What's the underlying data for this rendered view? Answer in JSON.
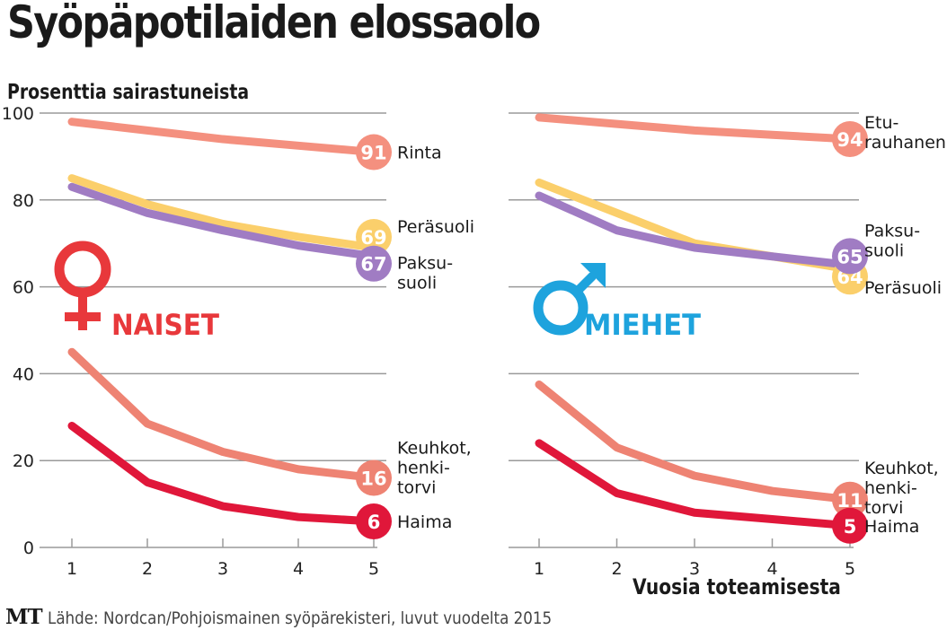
{
  "title": "Syöpäpotilaiden elossaolo",
  "y_axis_label": "Prosenttia sairastuneista",
  "x_axis_label": "Vuosia toteamisesta",
  "footer": {
    "logo": "MT",
    "source": "Lähde: Nordcan/Pohjoismainen syöpärekisteri, luvut vuodelta 2015"
  },
  "colors": {
    "breast_prostate": "#f4907f",
    "rectum": "#fbcf6b",
    "colon": "#a07cc3",
    "lung": "#ee8373",
    "pancreas": "#e0173a",
    "female": "#e8383b",
    "male": "#1ea3dd"
  },
  "chart_data": [
    {
      "type": "line",
      "panel": "NAISET",
      "gender_label": "NAISET",
      "gender_icon": "female-symbol-icon",
      "xlabel": "",
      "ylabel": "Prosenttia sairastuneista",
      "x": [
        1,
        2,
        3,
        4,
        5
      ],
      "x_ticks": [
        "1",
        "2",
        "3",
        "4",
        "5"
      ],
      "ylim": [
        0,
        100
      ],
      "y_ticks": [
        "0",
        "20",
        "40",
        "60",
        "80",
        "100"
      ],
      "grid": true,
      "series": [
        {
          "name": "Rinta",
          "label_lines": [
            "Rinta"
          ],
          "color_key": "breast_prostate",
          "values": [
            98,
            96,
            94,
            92.5,
            91
          ],
          "end_label": "91"
        },
        {
          "name": "Peräsuoli",
          "label_lines": [
            "Peräsuoli"
          ],
          "color_key": "rectum",
          "values": [
            85,
            79,
            74.5,
            71.5,
            69
          ],
          "end_label": "69"
        },
        {
          "name": "Paksusuoli",
          "label_lines": [
            "Paksu-",
            "suoli"
          ],
          "color_key": "colon",
          "values": [
            83,
            77,
            73,
            69.5,
            67
          ],
          "end_label": "67"
        },
        {
          "name": "Keuhkot, henkitorvi",
          "label_lines": [
            "Keuhkot,",
            "henki-",
            "torvi"
          ],
          "color_key": "lung",
          "values": [
            45,
            28.5,
            22,
            18,
            16
          ],
          "end_label": "16"
        },
        {
          "name": "Haima",
          "label_lines": [
            "Haima"
          ],
          "color_key": "pancreas",
          "values": [
            28,
            15,
            9.5,
            7,
            6
          ],
          "end_label": "6"
        }
      ]
    },
    {
      "type": "line",
      "panel": "MIEHET",
      "gender_label": "MIEHET",
      "gender_icon": "male-symbol-icon",
      "xlabel": "Vuosia toteamisesta",
      "ylabel": "",
      "x": [
        1,
        2,
        3,
        4,
        5
      ],
      "x_ticks": [
        "1",
        "2",
        "3",
        "4",
        "5"
      ],
      "ylim": [
        0,
        100
      ],
      "grid": true,
      "series": [
        {
          "name": "Eturauhanen",
          "label_lines": [
            "Etu-",
            "rauhanen"
          ],
          "color_key": "breast_prostate",
          "values": [
            99,
            97.5,
            96,
            95,
            94
          ],
          "end_label": "94"
        },
        {
          "name": "Peräsuoli",
          "label_lines": [
            "Peräsuoli"
          ],
          "color_key": "rectum",
          "values": [
            84,
            77,
            70,
            67,
            64
          ],
          "end_label": "64"
        },
        {
          "name": "Paksusuoli",
          "label_lines": [
            "Paksu-",
            "suoli"
          ],
          "color_key": "colon",
          "values": [
            81,
            73,
            69,
            67,
            65
          ],
          "end_label": "65"
        },
        {
          "name": "Keuhkot, henkitorvi",
          "label_lines": [
            "Keuhkot,",
            "henki-",
            "torvi"
          ],
          "color_key": "lung",
          "values": [
            37.5,
            23,
            16.5,
            13,
            11
          ],
          "end_label": "11"
        },
        {
          "name": "Haima",
          "label_lines": [
            "Haima"
          ],
          "color_key": "pancreas",
          "values": [
            24,
            12.5,
            8,
            6.5,
            5
          ],
          "end_label": "5"
        }
      ]
    }
  ]
}
